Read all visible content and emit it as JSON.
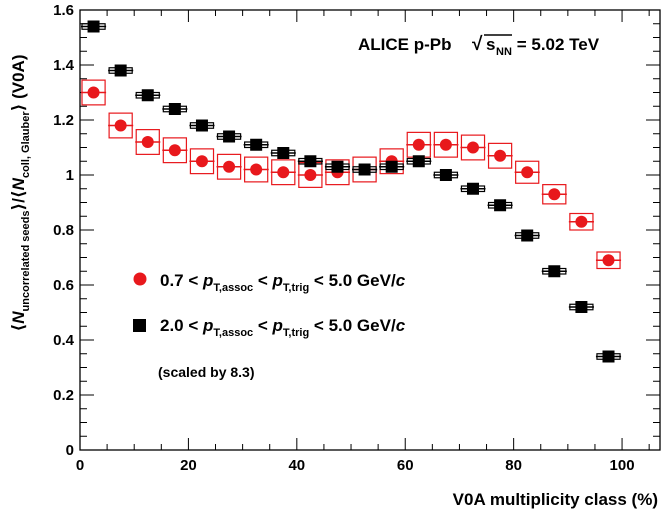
{
  "chart_data": {
    "type": "scatter",
    "xlabel": "V0A multiplicity class (%)",
    "ylabel": {
      "open": "⟨",
      "n1": "N",
      "n1_sub": "uncorrelated seeds",
      "mid": "⟩/⟨",
      "n2": "N",
      "n2_sub": "coll, Glauber",
      "close": "⟩ (V0A)"
    },
    "xlim": [
      0,
      107
    ],
    "ylim": [
      0,
      1.6
    ],
    "xticks": [
      0,
      20,
      40,
      60,
      80,
      100
    ],
    "xtick_labels": [
      "0",
      "20",
      "40",
      "60",
      "80",
      "100"
    ],
    "yticks": [
      0,
      0.2,
      0.4,
      0.6,
      0.8,
      1.0,
      1.2,
      1.4,
      1.6
    ],
    "ytick_labels": [
      "0",
      "0.2",
      "0.4",
      "0.6",
      "0.8",
      "1",
      "1.2",
      "1.4",
      "1.6"
    ],
    "annotation": {
      "experiment": "ALICE p-Pb",
      "sqrt": "√",
      "s": "s",
      "s_sub": "NN",
      "energy": " = 5.02 TeV"
    },
    "legend_note": "(scaled by 8.3)",
    "series": [
      {
        "legend": {
          "a": "0.7 < ",
          "p": "p",
          "p_sub": "T,assoc",
          "b": " < ",
          "p2": "p",
          "p2_sub": "T,trig",
          "c": " < 5.0 GeV/",
          "unit": "c"
        },
        "marker": "circle",
        "color": "#e8181c",
        "syst_color": "#e8181c",
        "x": [
          2.5,
          7.5,
          12.5,
          17.5,
          22.5,
          27.5,
          32.5,
          37.5,
          42.5,
          47.5,
          52.5,
          57.5,
          62.5,
          67.5,
          72.5,
          77.5,
          82.5,
          87.5,
          92.5,
          97.5
        ],
        "y": [
          1.3,
          1.18,
          1.12,
          1.09,
          1.05,
          1.03,
          1.02,
          1.01,
          1.0,
          1.01,
          1.02,
          1.05,
          1.11,
          1.11,
          1.1,
          1.07,
          1.01,
          0.93,
          0.83,
          0.69
        ],
        "syst": [
          0.045,
          0.045,
          0.045,
          0.045,
          0.045,
          0.045,
          0.045,
          0.045,
          0.045,
          0.045,
          0.045,
          0.045,
          0.045,
          0.045,
          0.045,
          0.045,
          0.04,
          0.035,
          0.03,
          0.03
        ]
      },
      {
        "legend": {
          "a": "2.0 < ",
          "p": "p",
          "p_sub": "T,assoc",
          "b": " < ",
          "p2": "p",
          "p2_sub": "T,trig",
          "c": " < 5.0 GeV/",
          "unit": "c"
        },
        "marker": "square",
        "color": "#000000",
        "syst_color": "#000000",
        "x": [
          2.5,
          7.5,
          12.5,
          17.5,
          22.5,
          27.5,
          32.5,
          37.5,
          42.5,
          47.5,
          52.5,
          57.5,
          62.5,
          67.5,
          72.5,
          77.5,
          82.5,
          87.5,
          92.5,
          97.5
        ],
        "y": [
          1.54,
          1.38,
          1.29,
          1.24,
          1.18,
          1.14,
          1.11,
          1.08,
          1.05,
          1.03,
          1.02,
          1.03,
          1.05,
          1.0,
          0.95,
          0.89,
          0.78,
          0.65,
          0.52,
          0.34
        ],
        "syst": [
          0.01,
          0.01,
          0.01,
          0.01,
          0.01,
          0.01,
          0.01,
          0.01,
          0.01,
          0.01,
          0.01,
          0.01,
          0.01,
          0.01,
          0.01,
          0.01,
          0.01,
          0.01,
          0.01,
          0.01
        ]
      }
    ]
  }
}
